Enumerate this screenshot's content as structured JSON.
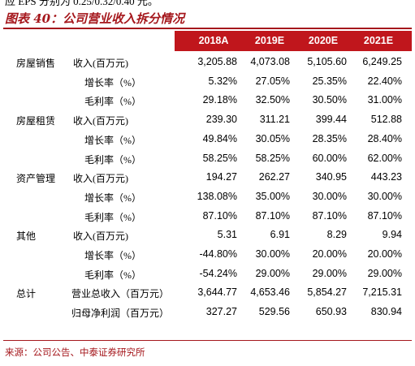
{
  "intro": "应 EPS 分别为 0.25/0.32/0.40 元。",
  "title": "图表 40：公司营业收入拆分情况",
  "table": {
    "header": [
      "2018A",
      "2019E",
      "2020E",
      "2021E"
    ],
    "segments": [
      {
        "name": "房屋销售",
        "rows": [
          {
            "metric": "收入(百万元)",
            "values": [
              "3,205.88",
              "4,073.08",
              "5,105.60",
              "6,249.25"
            ]
          },
          {
            "metric": "增长率（%）",
            "values": [
              "5.32%",
              "27.05%",
              "25.35%",
              "22.40%"
            ]
          },
          {
            "metric": "毛利率（%）",
            "values": [
              "29.18%",
              "32.50%",
              "30.50%",
              "31.00%"
            ]
          }
        ]
      },
      {
        "name": "房屋租赁",
        "rows": [
          {
            "metric": "收入(百万元)",
            "values": [
              "239.30",
              "311.21",
              "399.44",
              "512.88"
            ]
          },
          {
            "metric": "增长率（%）",
            "values": [
              "49.84%",
              "30.05%",
              "28.35%",
              "28.40%"
            ]
          },
          {
            "metric": "毛利率（%）",
            "values": [
              "58.25%",
              "58.25%",
              "60.00%",
              "62.00%"
            ]
          }
        ]
      },
      {
        "name": "资产管理",
        "rows": [
          {
            "metric": "收入(百万元)",
            "values": [
              "194.27",
              "262.27",
              "340.95",
              "443.23"
            ]
          },
          {
            "metric": "增长率（%）",
            "values": [
              "138.08%",
              "35.00%",
              "30.00%",
              "30.00%"
            ]
          },
          {
            "metric": "毛利率（%）",
            "values": [
              "87.10%",
              "87.10%",
              "87.10%",
              "87.10%"
            ]
          }
        ]
      },
      {
        "name": "其他",
        "rows": [
          {
            "metric": "收入(百万元)",
            "values": [
              "5.31",
              "6.91",
              "8.29",
              "9.94"
            ]
          },
          {
            "metric": "增长率（%）",
            "values": [
              "-44.80%",
              "30.00%",
              "20.00%",
              "20.00%"
            ]
          },
          {
            "metric": "毛利率（%）",
            "values": [
              "-54.24%",
              "29.00%",
              "29.00%",
              "29.00%"
            ]
          }
        ]
      },
      {
        "name": "总计",
        "rows": [
          {
            "metric": "营业总收入（百万元）",
            "values": [
              "3,644.77",
              "4,653.46",
              "5,854.27",
              "7,215.31"
            ]
          },
          {
            "metric": "归母净利润（百万元）",
            "values": [
              "327.27",
              "529.56",
              "650.93",
              "830.94"
            ]
          }
        ]
      }
    ]
  },
  "source": "来源：公司公告、中泰证券研究所"
}
